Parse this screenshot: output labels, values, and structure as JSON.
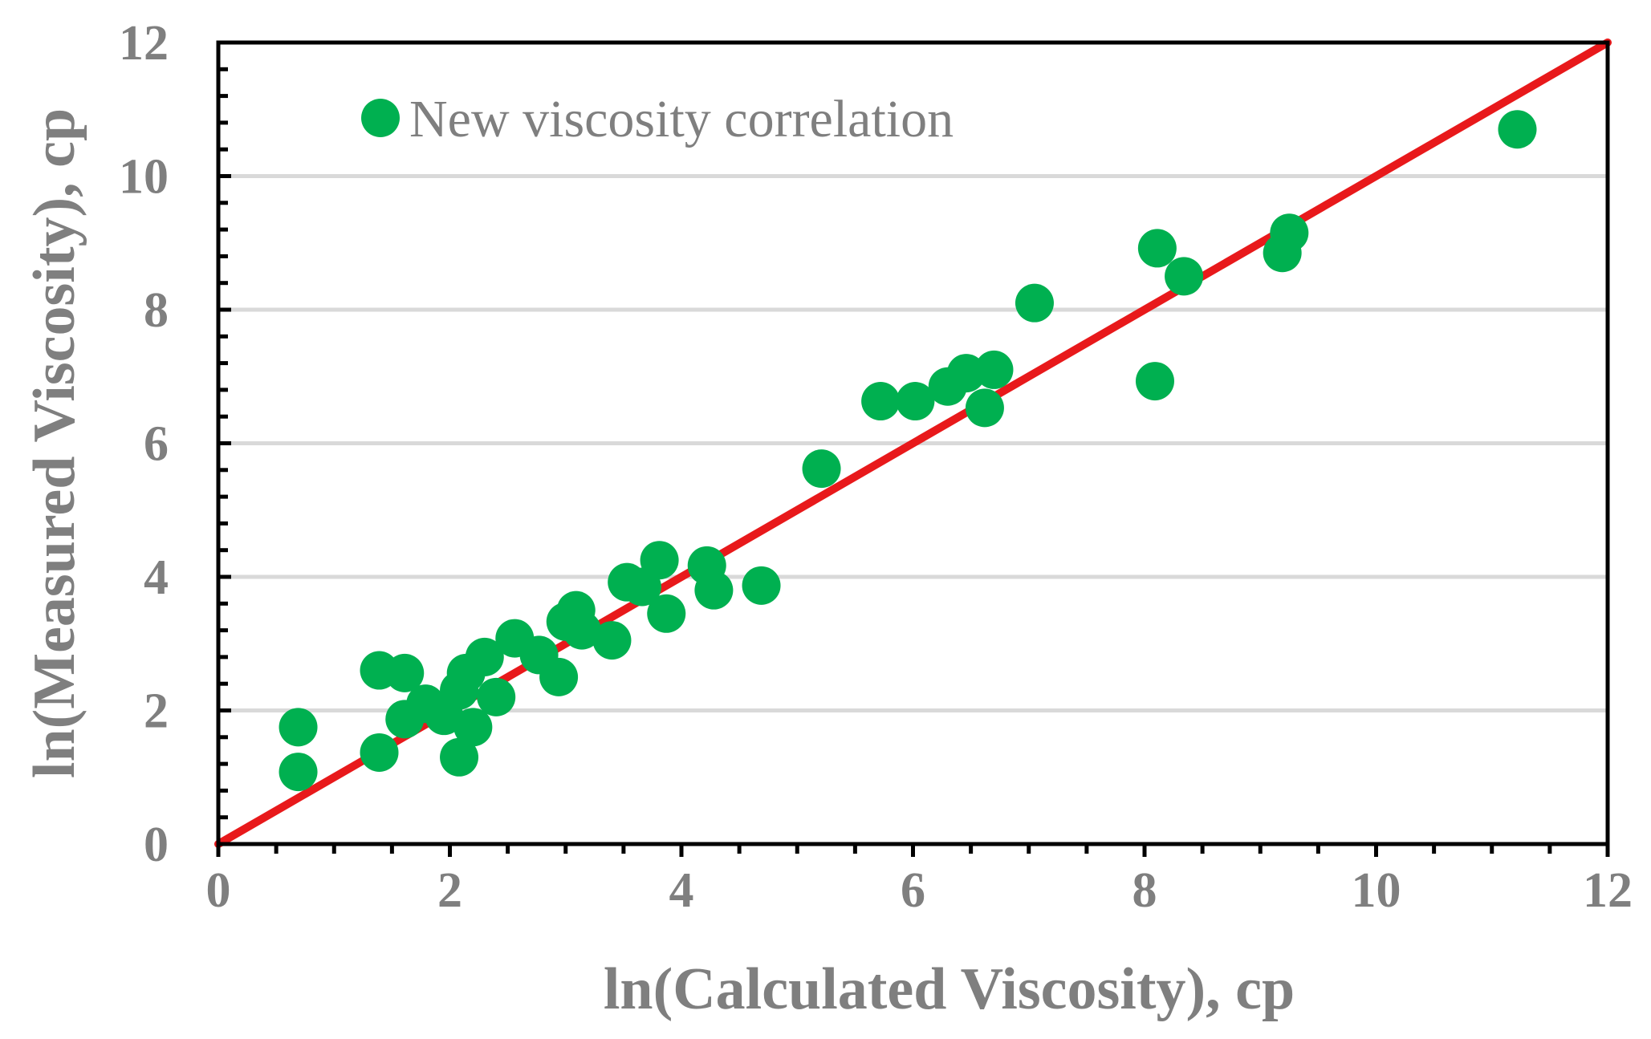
{
  "chart_data": {
    "type": "scatter",
    "title": "",
    "xlabel": "ln(Calculated Viscosity), cp",
    "ylabel": "ln(Measured Viscosity), cp",
    "xlim": [
      0,
      12
    ],
    "ylim": [
      0,
      12
    ],
    "xticks": [
      "0",
      "2",
      "4",
      "6",
      "8",
      "10",
      "12"
    ],
    "yticks": [
      "0",
      "2",
      "4",
      "6",
      "8",
      "10",
      "12"
    ],
    "grid": "horizontal",
    "legend": {
      "position": "top-left",
      "entries": [
        "New viscosity correlation"
      ]
    },
    "series": [
      {
        "name": "New viscosity correlation",
        "kind": "scatter",
        "color": "#00b050",
        "points": [
          [
            0.69,
            1.75
          ],
          [
            0.69,
            1.08
          ],
          [
            1.39,
            2.6
          ],
          [
            1.39,
            1.37
          ],
          [
            1.61,
            2.56
          ],
          [
            1.61,
            1.87
          ],
          [
            1.79,
            2.1
          ],
          [
            1.95,
            1.92
          ],
          [
            2.08,
            2.3
          ],
          [
            2.08,
            1.3
          ],
          [
            2.14,
            2.56
          ],
          [
            2.2,
            1.75
          ],
          [
            2.3,
            2.8
          ],
          [
            2.4,
            2.2
          ],
          [
            2.56,
            3.08
          ],
          [
            2.77,
            2.83
          ],
          [
            2.94,
            2.5
          ],
          [
            3.0,
            3.33
          ],
          [
            3.09,
            3.5
          ],
          [
            3.14,
            3.2
          ],
          [
            3.4,
            3.05
          ],
          [
            3.53,
            3.92
          ],
          [
            3.66,
            3.85
          ],
          [
            3.81,
            4.25
          ],
          [
            3.87,
            3.45
          ],
          [
            4.22,
            4.17
          ],
          [
            4.28,
            3.8
          ],
          [
            4.69,
            3.87
          ],
          [
            5.21,
            5.62
          ],
          [
            5.72,
            6.63
          ],
          [
            6.02,
            6.63
          ],
          [
            6.3,
            6.85
          ],
          [
            6.46,
            7.05
          ],
          [
            6.62,
            6.53
          ],
          [
            6.7,
            7.1
          ],
          [
            7.05,
            8.1
          ],
          [
            8.09,
            6.93
          ],
          [
            8.11,
            8.92
          ],
          [
            8.34,
            8.5
          ],
          [
            9.19,
            8.85
          ],
          [
            9.25,
            9.15
          ],
          [
            11.22,
            10.7
          ]
        ]
      },
      {
        "name": "1:1 line",
        "kind": "line",
        "color": "#e8191b",
        "points": [
          [
            0,
            0
          ],
          [
            12,
            12
          ]
        ]
      }
    ],
    "colors": {
      "axis": "#000000",
      "grid": "#d9d9d9",
      "text": "#7f7f7f"
    }
  }
}
